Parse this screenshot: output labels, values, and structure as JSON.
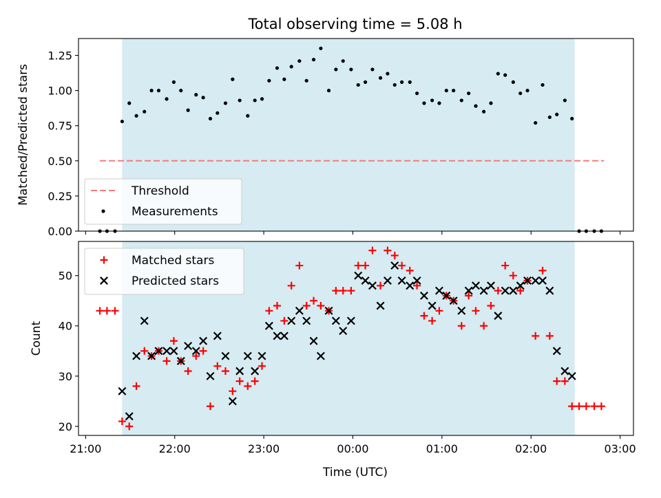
{
  "figure": {
    "title": "Total observing time = 5.08 h",
    "xlabel": "Time (UTC)"
  },
  "chart_data": [
    {
      "type": "scatter",
      "panel": "top",
      "ylabel": "Matched/Predicted stars",
      "x_unit": "hours since 21:00 UTC",
      "xlim": [
        -0.08,
        6.15
      ],
      "ylim": [
        0,
        1.37
      ],
      "yticks": [
        0.0,
        0.25,
        0.5,
        0.75,
        1.0,
        1.25
      ],
      "ytick_labels": [
        "0.00",
        "0.25",
        "0.50",
        "0.75",
        "1.00",
        "1.25"
      ],
      "observing_window": [
        0.41,
        5.49
      ],
      "legend": {
        "placement": "bottom-left",
        "entries": [
          "Threshold",
          "Measurements"
        ]
      },
      "threshold": {
        "name": "Threshold",
        "value": 0.5,
        "x_range": [
          0.16,
          5.82
        ],
        "color": "#f37b7b",
        "style": "dashed"
      },
      "series": [
        {
          "name": "Measurements",
          "color": "#000000",
          "marker": "dot",
          "x": [
            0.16,
            0.24,
            0.33,
            0.41,
            0.49,
            0.57,
            0.66,
            0.74,
            0.82,
            0.91,
            0.99,
            1.07,
            1.15,
            1.24,
            1.32,
            1.4,
            1.48,
            1.57,
            1.65,
            1.73,
            1.82,
            1.9,
            1.98,
            2.06,
            2.15,
            2.23,
            2.31,
            2.4,
            2.48,
            2.56,
            2.64,
            2.73,
            2.81,
            2.89,
            2.98,
            3.06,
            3.14,
            3.22,
            3.31,
            3.39,
            3.47,
            3.55,
            3.64,
            3.72,
            3.8,
            3.89,
            3.97,
            4.05,
            4.13,
            4.22,
            4.3,
            4.38,
            4.47,
            4.55,
            4.63,
            4.71,
            4.8,
            4.88,
            4.96,
            5.05,
            5.13,
            5.21,
            5.29,
            5.38,
            5.46,
            5.54,
            5.62,
            5.71,
            5.79
          ],
          "y": [
            0.0,
            0.0,
            0.0,
            0.78,
            0.91,
            0.82,
            0.85,
            1.0,
            1.0,
            0.94,
            1.06,
            1.0,
            0.86,
            0.97,
            0.95,
            0.8,
            0.84,
            0.91,
            1.08,
            0.93,
            0.82,
            0.93,
            0.94,
            1.07,
            1.16,
            1.08,
            1.17,
            1.21,
            1.07,
            1.22,
            1.3,
            1.0,
            1.15,
            1.21,
            1.15,
            1.04,
            1.06,
            1.15,
            1.09,
            1.12,
            1.04,
            1.06,
            1.06,
            0.98,
            0.91,
            0.93,
            0.91,
            1.0,
            1.0,
            0.93,
            0.98,
            0.89,
            0.85,
            0.91,
            1.12,
            1.11,
            1.06,
            0.98,
            1.0,
            0.77,
            1.04,
            0.81,
            0.83,
            0.93,
            0.8,
            0.0,
            0.0,
            0.0,
            0.0
          ]
        }
      ]
    },
    {
      "type": "scatter",
      "panel": "bottom",
      "ylabel": "Count",
      "x_unit": "hours since 21:00 UTC",
      "xlim": [
        -0.08,
        6.15
      ],
      "ylim": [
        18.2,
        56.8
      ],
      "yticks": [
        20,
        30,
        40,
        50
      ],
      "ytick_labels": [
        "20",
        "30",
        "40",
        "50"
      ],
      "xticks": [
        0,
        1,
        2,
        3,
        4,
        5,
        6
      ],
      "xtick_labels": [
        "21:00",
        "22:00",
        "23:00",
        "00:00",
        "01:00",
        "02:00",
        "03:00"
      ],
      "observing_window": [
        0.41,
        5.49
      ],
      "legend": {
        "placement": "top-left",
        "entries": [
          "Matched stars",
          "Predicted stars"
        ]
      },
      "series": [
        {
          "name": "Matched stars",
          "color": "#ff0000",
          "marker": "plus",
          "x": [
            0.16,
            0.24,
            0.33,
            0.41,
            0.49,
            0.57,
            0.66,
            0.74,
            0.82,
            0.91,
            0.99,
            1.07,
            1.15,
            1.24,
            1.32,
            1.4,
            1.48,
            1.57,
            1.65,
            1.73,
            1.82,
            1.9,
            1.98,
            2.06,
            2.15,
            2.23,
            2.31,
            2.4,
            2.48,
            2.56,
            2.64,
            2.73,
            2.81,
            2.89,
            2.98,
            3.06,
            3.14,
            3.22,
            3.31,
            3.39,
            3.47,
            3.55,
            3.64,
            3.72,
            3.8,
            3.89,
            3.97,
            4.05,
            4.13,
            4.22,
            4.3,
            4.38,
            4.47,
            4.55,
            4.63,
            4.71,
            4.8,
            4.88,
            4.96,
            5.05,
            5.13,
            5.21,
            5.29,
            5.38,
            5.46,
            5.54,
            5.62,
            5.71,
            5.79
          ],
          "y": [
            43,
            43,
            43,
            21,
            20,
            28,
            35,
            34,
            35,
            33,
            37,
            33,
            31,
            34,
            35,
            24,
            32,
            31,
            27,
            29,
            28,
            29,
            32,
            43,
            44,
            41,
            48,
            52,
            44,
            45,
            44,
            43,
            47,
            47,
            47,
            52,
            52,
            55,
            48,
            55,
            54,
            52,
            51,
            48,
            42,
            41,
            43,
            46,
            45,
            40,
            46,
            43,
            40,
            44,
            47,
            52,
            50,
            47,
            49,
            38,
            51,
            38,
            29,
            29,
            24,
            24,
            24,
            24,
            24
          ]
        },
        {
          "name": "Predicted stars",
          "color": "#000000",
          "marker": "x",
          "x": [
            0.41,
            0.49,
            0.57,
            0.66,
            0.74,
            0.82,
            0.91,
            0.99,
            1.07,
            1.15,
            1.24,
            1.32,
            1.4,
            1.48,
            1.57,
            1.65,
            1.73,
            1.82,
            1.9,
            1.98,
            2.06,
            2.15,
            2.23,
            2.31,
            2.4,
            2.48,
            2.56,
            2.64,
            2.73,
            2.81,
            2.89,
            2.98,
            3.06,
            3.14,
            3.22,
            3.31,
            3.39,
            3.47,
            3.55,
            3.64,
            3.72,
            3.8,
            3.89,
            3.97,
            4.05,
            4.13,
            4.22,
            4.3,
            4.38,
            4.47,
            4.55,
            4.63,
            4.71,
            4.8,
            4.88,
            4.96,
            5.05,
            5.13,
            5.21,
            5.29,
            5.38,
            5.46
          ],
          "y": [
            27,
            22,
            34,
            41,
            34,
            35,
            35,
            35,
            33,
            36,
            35,
            37,
            30,
            38,
            34,
            25,
            31,
            34,
            31,
            34,
            40,
            38,
            38,
            41,
            43,
            41,
            37,
            34,
            43,
            41,
            39,
            41,
            50,
            49,
            48,
            44,
            49,
            52,
            49,
            48,
            49,
            46,
            44,
            47,
            46,
            45,
            43,
            47,
            48,
            47,
            48,
            42,
            47,
            47,
            48,
            49,
            49,
            49,
            47,
            35,
            31,
            30
          ]
        }
      ]
    }
  ]
}
